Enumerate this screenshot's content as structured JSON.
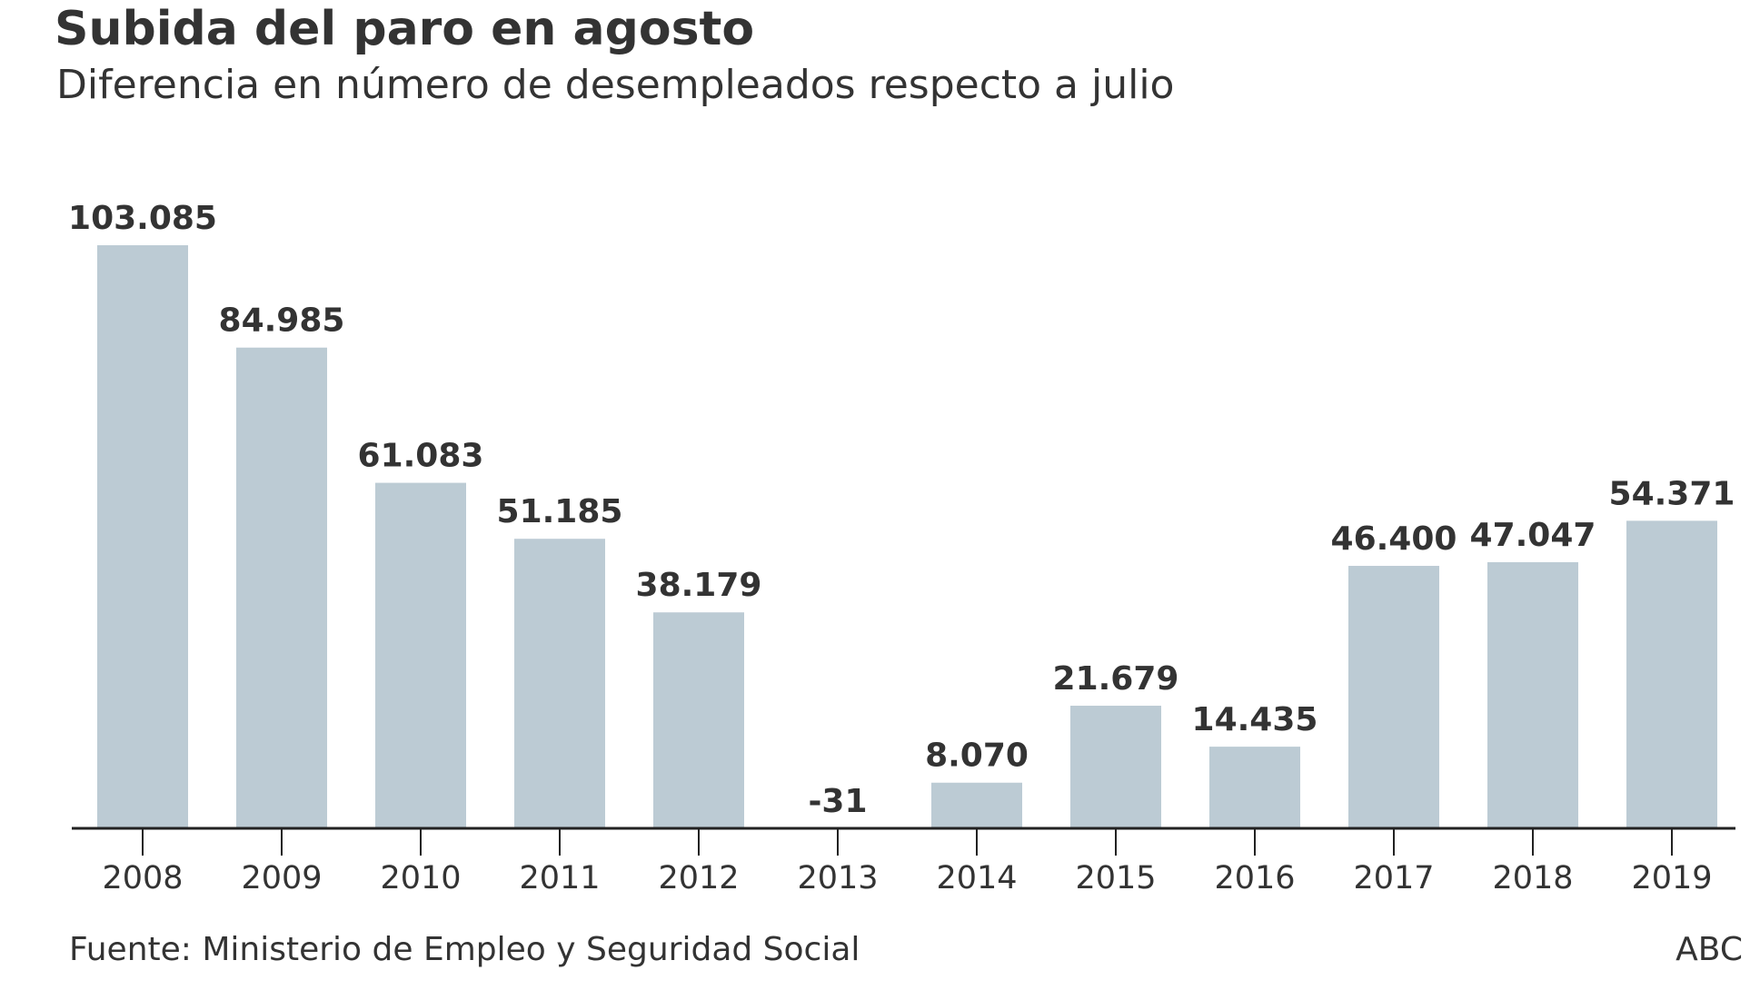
{
  "header": {
    "title": "Subida del paro en agosto",
    "subtitle": "Diferencia en número de desempleados respecto a julio"
  },
  "footer": {
    "source": "Fuente: Ministerio de Empleo y Seguridad Social",
    "credit": "ABC"
  },
  "colors": {
    "bar": "#bccbd4",
    "text": "#333333",
    "axis": "#222222"
  },
  "chart_data": {
    "type": "bar",
    "title": "Subida del paro en agosto",
    "subtitle": "Diferencia en número de desempleados respecto a julio",
    "categories": [
      "2008",
      "2009",
      "2010",
      "2011",
      "2012",
      "2013",
      "2014",
      "2015",
      "2016",
      "2017",
      "2018",
      "2019"
    ],
    "values": [
      103085,
      84985,
      61083,
      51185,
      38179,
      -31,
      8070,
      21679,
      14435,
      46400,
      47047,
      54371
    ],
    "value_labels": [
      "103.085",
      "84.985",
      "61.083",
      "51.185",
      "38.179",
      "-31",
      "8.070",
      "21.679",
      "14.435",
      "46.400",
      "47.047",
      "54.371"
    ],
    "xlabel": "",
    "ylabel": "",
    "ylim": [
      0,
      103085
    ],
    "grid": false,
    "legend": "none"
  }
}
